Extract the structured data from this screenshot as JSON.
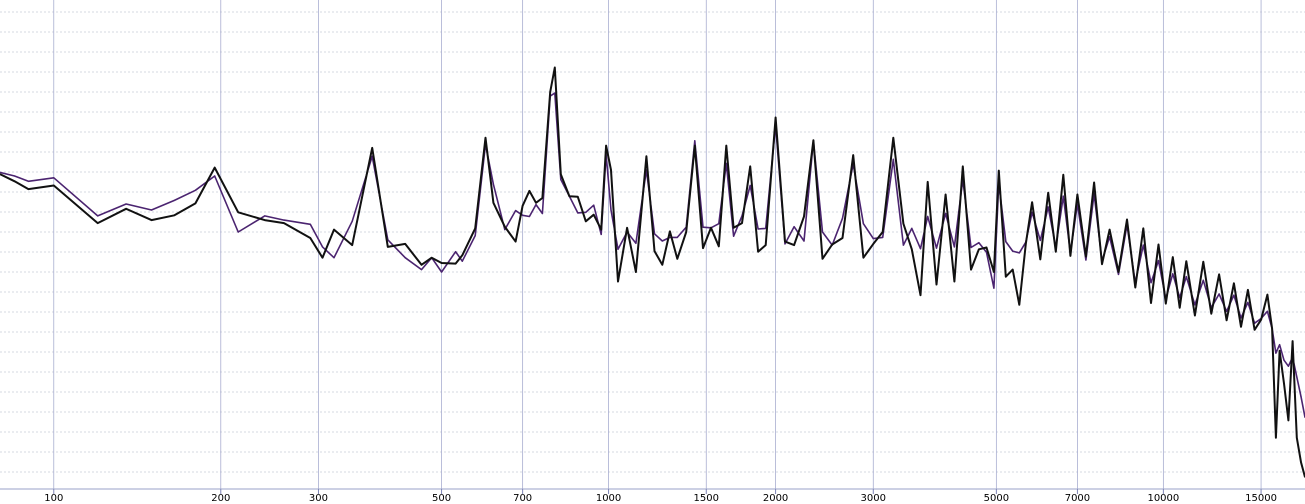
{
  "chart_data": {
    "type": "line",
    "title": "",
    "xlabel": "",
    "ylabel": "",
    "x_scale": "log",
    "xlim": [
      80,
      18000
    ],
    "ylim": [
      -80,
      0
    ],
    "grid": true,
    "x_ticks": [
      {
        "value": 100,
        "label": "100"
      },
      {
        "value": 200,
        "label": "200"
      },
      {
        "value": 300,
        "label": "300"
      },
      {
        "value": 500,
        "label": "500"
      },
      {
        "value": 700,
        "label": "700"
      },
      {
        "value": 1000,
        "label": "1000"
      },
      {
        "value": 1500,
        "label": "1500"
      },
      {
        "value": 2000,
        "label": "2000"
      },
      {
        "value": 3000,
        "label": "3000"
      },
      {
        "value": 5000,
        "label": "5000"
      },
      {
        "value": 7000,
        "label": "7000"
      },
      {
        "value": 10000,
        "label": "10000"
      },
      {
        "value": 15000,
        "label": "15000"
      }
    ],
    "series": [
      {
        "color": "#111111",
        "values": [
          [
            80,
            -27.2
          ],
          [
            85,
            -28.4
          ],
          [
            90,
            -29.7
          ],
          [
            100,
            -29.1
          ],
          [
            120,
            -35.4
          ],
          [
            135,
            -33.0
          ],
          [
            150,
            -34.9
          ],
          [
            165,
            -34.1
          ],
          [
            180,
            -32.1
          ],
          [
            195,
            -26.1
          ],
          [
            215,
            -33.6
          ],
          [
            240,
            -34.9
          ],
          [
            260,
            -35.4
          ],
          [
            290,
            -37.9
          ],
          [
            305,
            -41.2
          ],
          [
            320,
            -36.5
          ],
          [
            345,
            -39.1
          ],
          [
            375,
            -22.8
          ],
          [
            400,
            -39.4
          ],
          [
            430,
            -38.9
          ],
          [
            460,
            -42.4
          ],
          [
            480,
            -41.2
          ],
          [
            500,
            -42.1
          ],
          [
            530,
            -42.2
          ],
          [
            545,
            -40.8
          ],
          [
            575,
            -36.3
          ],
          [
            600,
            -21.1
          ],
          [
            620,
            -32.0
          ],
          [
            650,
            -36.0
          ],
          [
            680,
            -38.5
          ],
          [
            700,
            -32.5
          ],
          [
            720,
            -30.0
          ],
          [
            740,
            -32.0
          ],
          [
            760,
            -31.2
          ],
          [
            785,
            -13.4
          ],
          [
            800,
            -9.3
          ],
          [
            820,
            -27.2
          ],
          [
            850,
            -30.9
          ],
          [
            880,
            -31.0
          ],
          [
            910,
            -35.1
          ],
          [
            940,
            -34.0
          ],
          [
            970,
            -36.5
          ],
          [
            990,
            -22.4
          ],
          [
            1010,
            -26.5
          ],
          [
            1040,
            -45.2
          ],
          [
            1080,
            -36.2
          ],
          [
            1120,
            -43.6
          ],
          [
            1170,
            -24.2
          ],
          [
            1210,
            -40.1
          ],
          [
            1250,
            -42.4
          ],
          [
            1290,
            -36.8
          ],
          [
            1330,
            -41.4
          ],
          [
            1380,
            -36.9
          ],
          [
            1430,
            -22.4
          ],
          [
            1480,
            -39.6
          ],
          [
            1530,
            -36.2
          ],
          [
            1580,
            -39.3
          ],
          [
            1630,
            -22.4
          ],
          [
            1680,
            -36.2
          ],
          [
            1740,
            -35.4
          ],
          [
            1800,
            -25.9
          ],
          [
            1860,
            -40.2
          ],
          [
            1920,
            -39.1
          ],
          [
            2000,
            -17.7
          ],
          [
            2080,
            -38.5
          ],
          [
            2160,
            -39.1
          ],
          [
            2250,
            -34.3
          ],
          [
            2340,
            -21.5
          ],
          [
            2430,
            -41.4
          ],
          [
            2530,
            -39.0
          ],
          [
            2640,
            -37.9
          ],
          [
            2760,
            -24.0
          ],
          [
            2880,
            -41.2
          ],
          [
            3000,
            -38.9
          ],
          [
            3120,
            -36.9
          ],
          [
            3260,
            -21.1
          ],
          [
            3400,
            -35.5
          ],
          [
            3520,
            -39.8
          ],
          [
            3650,
            -47.5
          ],
          [
            3760,
            -28.5
          ],
          [
            3900,
            -45.7
          ],
          [
            4050,
            -30.6
          ],
          [
            4200,
            -45.2
          ],
          [
            4350,
            -25.9
          ],
          [
            4500,
            -43.2
          ],
          [
            4650,
            -39.8
          ],
          [
            4800,
            -39.5
          ],
          [
            4950,
            -43.6
          ],
          [
            5050,
            -26.6
          ],
          [
            5200,
            -44.4
          ],
          [
            5350,
            -43.2
          ],
          [
            5500,
            -49.1
          ],
          [
            5650,
            -38.9
          ],
          [
            5800,
            -31.9
          ],
          [
            6000,
            -41.5
          ],
          [
            6200,
            -30.3
          ],
          [
            6400,
            -40.2
          ],
          [
            6600,
            -27.3
          ],
          [
            6800,
            -40.9
          ],
          [
            7000,
            -30.6
          ],
          [
            7250,
            -41.0
          ],
          [
            7500,
            -28.6
          ],
          [
            7750,
            -42.3
          ],
          [
            8000,
            -36.5
          ],
          [
            8300,
            -43.6
          ],
          [
            8600,
            -34.8
          ],
          [
            8900,
            -46.2
          ],
          [
            9200,
            -36.3
          ],
          [
            9500,
            -48.8
          ],
          [
            9800,
            -39.0
          ],
          [
            10100,
            -48.9
          ],
          [
            10400,
            -41.1
          ],
          [
            10700,
            -49.6
          ],
          [
            11000,
            -41.8
          ],
          [
            11400,
            -50.9
          ],
          [
            11800,
            -41.9
          ],
          [
            12200,
            -50.6
          ],
          [
            12600,
            -44.0
          ],
          [
            13000,
            -51.7
          ],
          [
            13400,
            -45.5
          ],
          [
            13800,
            -52.8
          ],
          [
            14200,
            -46.6
          ],
          [
            14600,
            -53.3
          ],
          [
            15000,
            -51.6
          ],
          [
            15400,
            -47.4
          ],
          [
            15700,
            -53.1
          ],
          [
            15950,
            -71.4
          ],
          [
            16200,
            -56.8
          ],
          [
            16500,
            -62.3
          ],
          [
            16800,
            -68.5
          ],
          [
            17100,
            -55.2
          ],
          [
            17400,
            -71.4
          ],
          [
            17700,
            -75.5
          ],
          [
            18000,
            -78.0
          ]
        ]
      },
      {
        "color": "#4b2470",
        "values": [
          [
            80,
            -26.9
          ],
          [
            85,
            -27.5
          ],
          [
            90,
            -28.4
          ],
          [
            100,
            -27.8
          ],
          [
            120,
            -34.2
          ],
          [
            135,
            -32.2
          ],
          [
            150,
            -33.2
          ],
          [
            165,
            -31.6
          ],
          [
            180,
            -29.9
          ],
          [
            195,
            -27.5
          ],
          [
            215,
            -36.9
          ],
          [
            240,
            -34.2
          ],
          [
            260,
            -34.9
          ],
          [
            290,
            -35.6
          ],
          [
            305,
            -39.4
          ],
          [
            320,
            -41.2
          ],
          [
            345,
            -35.1
          ],
          [
            375,
            -24.2
          ],
          [
            400,
            -38.2
          ],
          [
            430,
            -41.2
          ],
          [
            460,
            -43.2
          ],
          [
            480,
            -41.2
          ],
          [
            500,
            -43.6
          ],
          [
            530,
            -40.2
          ],
          [
            545,
            -41.8
          ],
          [
            575,
            -37.5
          ],
          [
            600,
            -22.2
          ],
          [
            620,
            -28.9
          ],
          [
            650,
            -36.5
          ],
          [
            680,
            -33.3
          ],
          [
            700,
            -34.1
          ],
          [
            720,
            -34.3
          ],
          [
            740,
            -32.3
          ],
          [
            760,
            -33.8
          ],
          [
            785,
            -14.1
          ],
          [
            800,
            -13.6
          ],
          [
            820,
            -28.1
          ],
          [
            850,
            -30.9
          ],
          [
            880,
            -33.7
          ],
          [
            910,
            -33.6
          ],
          [
            940,
            -32.4
          ],
          [
            970,
            -37.3
          ],
          [
            990,
            -23.9
          ],
          [
            1010,
            -33.2
          ],
          [
            1040,
            -39.8
          ],
          [
            1080,
            -36.9
          ],
          [
            1120,
            -38.8
          ],
          [
            1170,
            -26.5
          ],
          [
            1210,
            -37.2
          ],
          [
            1250,
            -38.4
          ],
          [
            1290,
            -37.8
          ],
          [
            1330,
            -37.8
          ],
          [
            1380,
            -36.1
          ],
          [
            1430,
            -21.6
          ],
          [
            1480,
            -36.1
          ],
          [
            1530,
            -36.2
          ],
          [
            1580,
            -35.5
          ],
          [
            1630,
            -25.4
          ],
          [
            1680,
            -37.6
          ],
          [
            1740,
            -34.2
          ],
          [
            1800,
            -29.1
          ],
          [
            1860,
            -36.4
          ],
          [
            1920,
            -36.3
          ],
          [
            2000,
            -19.0
          ],
          [
            2080,
            -38.9
          ],
          [
            2160,
            -36.0
          ],
          [
            2250,
            -38.4
          ],
          [
            2340,
            -21.6
          ],
          [
            2430,
            -36.9
          ],
          [
            2530,
            -39.1
          ],
          [
            2640,
            -34.6
          ],
          [
            2760,
            -25.5
          ],
          [
            2880,
            -35.5
          ],
          [
            3000,
            -38.0
          ],
          [
            3120,
            -37.8
          ],
          [
            3260,
            -24.7
          ],
          [
            3400,
            -39.1
          ],
          [
            3520,
            -36.3
          ],
          [
            3650,
            -39.7
          ],
          [
            3760,
            -34.3
          ],
          [
            3900,
            -39.6
          ],
          [
            4050,
            -33.8
          ],
          [
            4200,
            -39.4
          ],
          [
            4350,
            -28.1
          ],
          [
            4500,
            -39.5
          ],
          [
            4650,
            -38.7
          ],
          [
            4800,
            -40.3
          ],
          [
            4950,
            -46.3
          ],
          [
            5050,
            -28.7
          ],
          [
            5200,
            -38.5
          ],
          [
            5350,
            -40.1
          ],
          [
            5500,
            -40.4
          ],
          [
            5650,
            -38.6
          ],
          [
            5800,
            -33.6
          ],
          [
            6000,
            -38.3
          ],
          [
            6200,
            -32.7
          ],
          [
            6400,
            -39.5
          ],
          [
            6600,
            -30.9
          ],
          [
            6800,
            -40.4
          ],
          [
            7000,
            -32.2
          ],
          [
            7250,
            -41.6
          ],
          [
            7500,
            -30.5
          ],
          [
            7750,
            -41.8
          ],
          [
            8000,
            -37.7
          ],
          [
            8300,
            -44.0
          ],
          [
            8600,
            -35.7
          ],
          [
            8900,
            -45.4
          ],
          [
            9200,
            -39.1
          ],
          [
            9500,
            -45.4
          ],
          [
            9800,
            -41.7
          ],
          [
            10100,
            -48.1
          ],
          [
            10400,
            -43.9
          ],
          [
            10700,
            -47.9
          ],
          [
            11000,
            -44.4
          ],
          [
            11400,
            -49.1
          ],
          [
            11800,
            -45.0
          ],
          [
            12200,
            -49.6
          ],
          [
            12600,
            -47.3
          ],
          [
            13000,
            -50.2
          ],
          [
            13400,
            -47.5
          ],
          [
            13800,
            -51.3
          ],
          [
            14200,
            -48.7
          ],
          [
            14600,
            -52.2
          ],
          [
            15000,
            -51.4
          ],
          [
            15400,
            -50.2
          ],
          [
            15700,
            -53.1
          ],
          [
            15950,
            -57.2
          ],
          [
            16200,
            -55.8
          ],
          [
            16500,
            -58.4
          ],
          [
            16800,
            -59.4
          ],
          [
            17100,
            -57.9
          ],
          [
            17400,
            -61.2
          ],
          [
            17700,
            -64.5
          ],
          [
            18000,
            -68.0
          ]
        ]
      }
    ]
  }
}
